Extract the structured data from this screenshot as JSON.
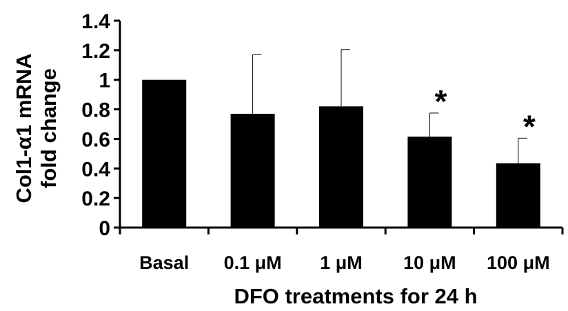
{
  "chart_data": {
    "type": "bar",
    "categories": [
      "Basal",
      "0.1 μM",
      "1 μM",
      "10 μM",
      "100 μM"
    ],
    "values": [
      1.0,
      0.77,
      0.82,
      0.615,
      0.435
    ],
    "error_upper": [
      0.0,
      0.4,
      0.385,
      0.16,
      0.17
    ],
    "significance": [
      "",
      "",
      "",
      "*",
      "*"
    ],
    "ylabel_line1": "Col1-α1 mRNA",
    "ylabel_line2": "fold change",
    "xlabel": "DFO treatments  for 24 h",
    "ylim": [
      0,
      1.4
    ],
    "yticks": [
      0,
      0.2,
      0.4,
      0.6,
      0.8,
      1,
      1.2,
      1.4
    ],
    "ytick_labels": [
      "0",
      "0.2",
      "0.4",
      "0.6",
      "0.8",
      "1",
      "1.2",
      "1.4"
    ],
    "bar_color": "#000000",
    "grid": false,
    "legend": "none"
  }
}
